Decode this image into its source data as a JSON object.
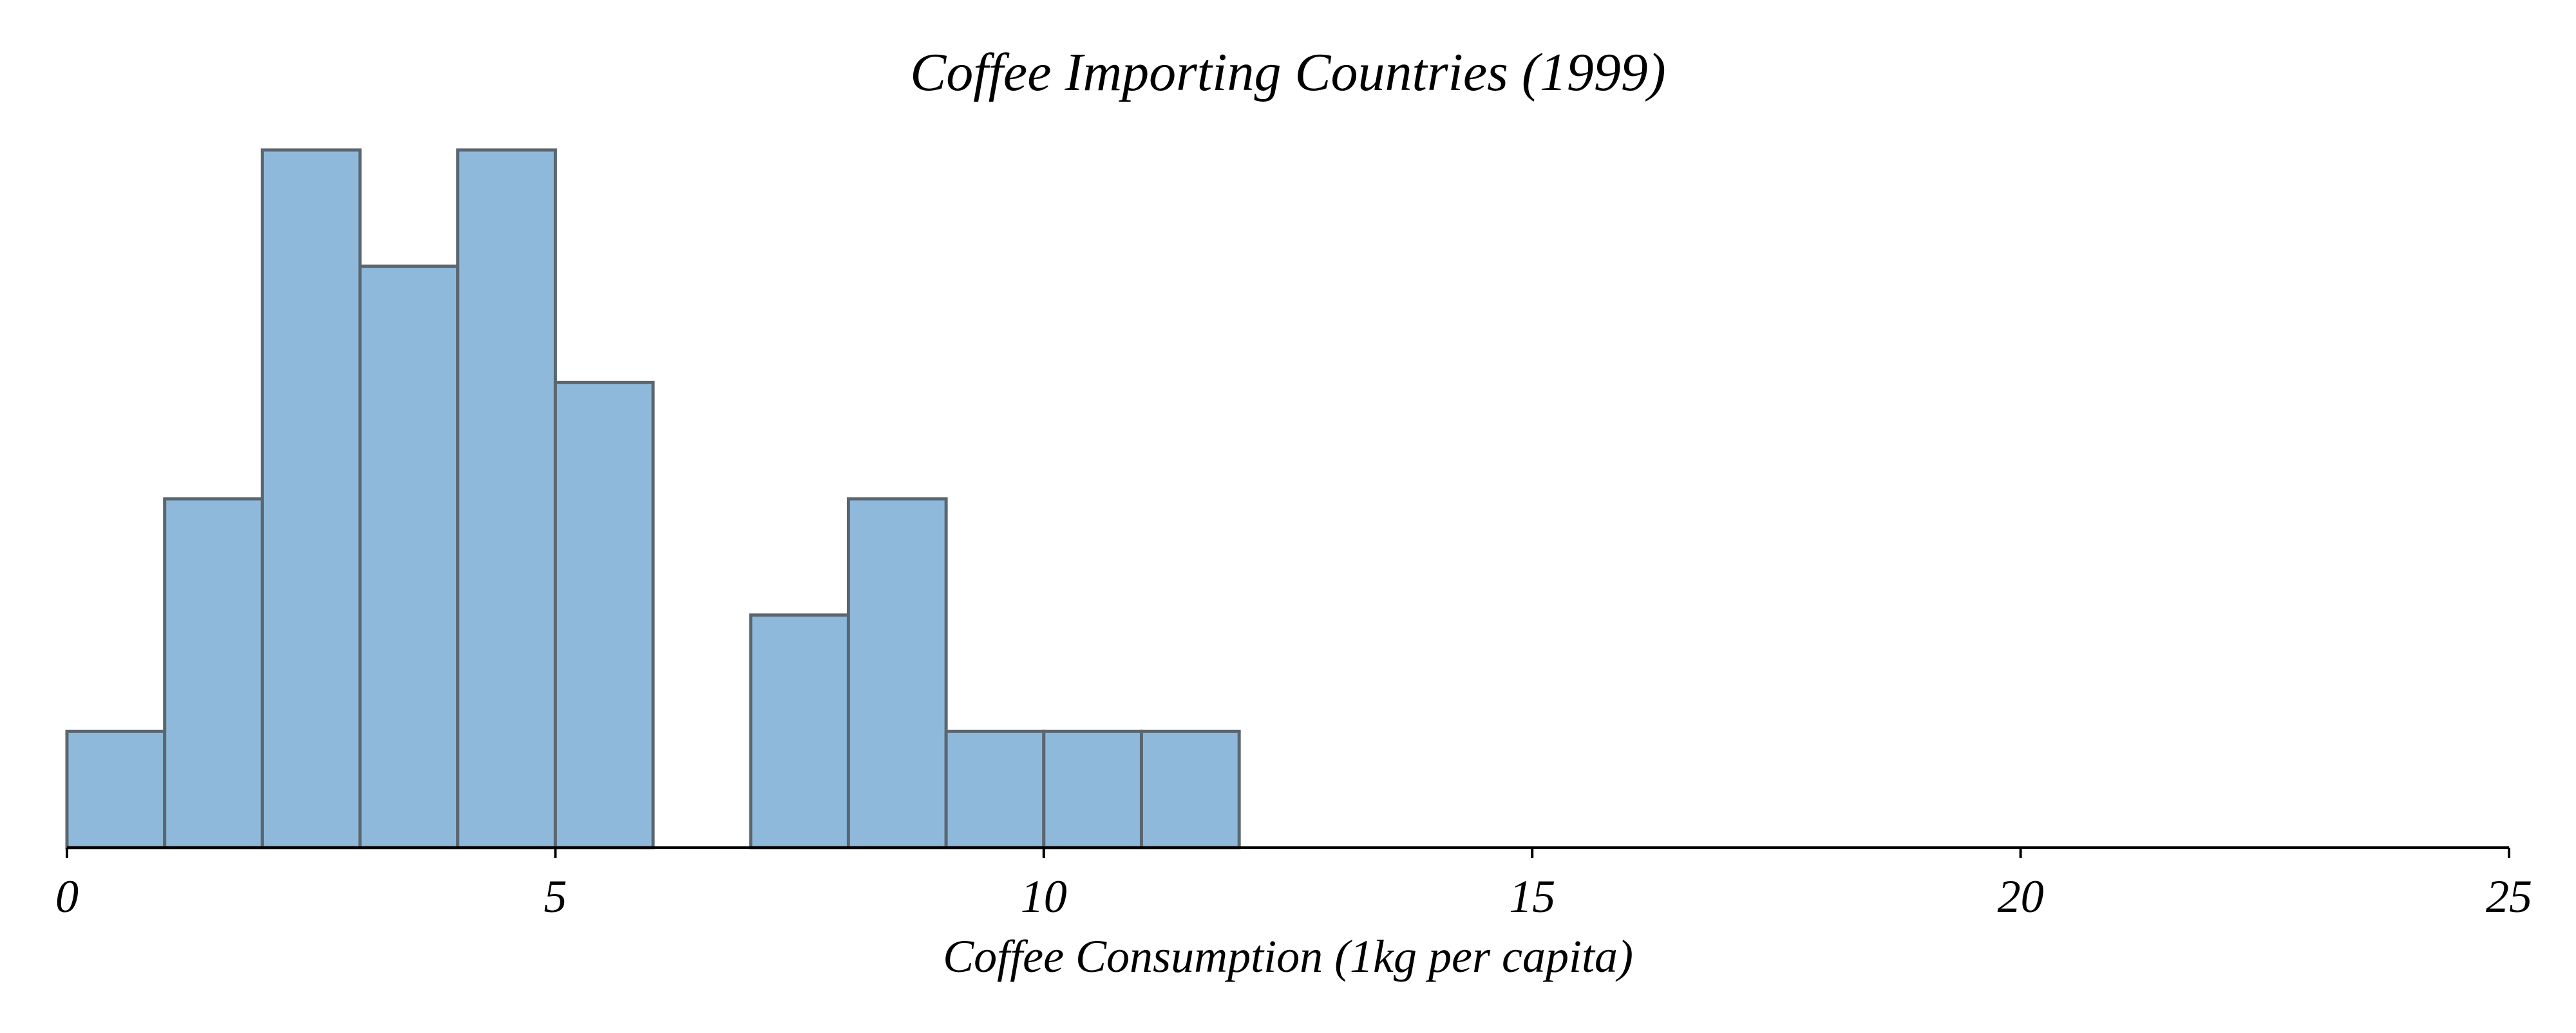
{
  "chart_data": {
    "type": "bar",
    "title": "Coffee Importing Countries (1999)",
    "xlabel": "Coffee Consumption (1kg per capita)",
    "ylabel": "",
    "xlim": [
      0,
      25
    ],
    "ylim": [
      0,
      6
    ],
    "x_ticks": [
      0,
      5,
      10,
      15,
      20,
      25
    ],
    "x_tick_labels": [
      "0",
      "5",
      "10",
      "15",
      "20",
      "25"
    ],
    "bins": [
      {
        "start": 0,
        "end": 1,
        "count": 1
      },
      {
        "start": 1,
        "end": 2,
        "count": 3
      },
      {
        "start": 2,
        "end": 3,
        "count": 6
      },
      {
        "start": 3,
        "end": 4,
        "count": 5
      },
      {
        "start": 4,
        "end": 5,
        "count": 6
      },
      {
        "start": 5,
        "end": 6,
        "count": 4
      },
      {
        "start": 6,
        "end": 7,
        "count": 0
      },
      {
        "start": 7,
        "end": 8,
        "count": 2
      },
      {
        "start": 8,
        "end": 9,
        "count": 3
      },
      {
        "start": 9,
        "end": 10,
        "count": 1
      },
      {
        "start": 10,
        "end": 11,
        "count": 1
      },
      {
        "start": 11,
        "end": 12,
        "count": 1
      }
    ],
    "y_axis_visible": false,
    "grid": false,
    "legend": "none",
    "bar_color": "#8fb9da",
    "bar_edge_color": "#5a6670"
  }
}
